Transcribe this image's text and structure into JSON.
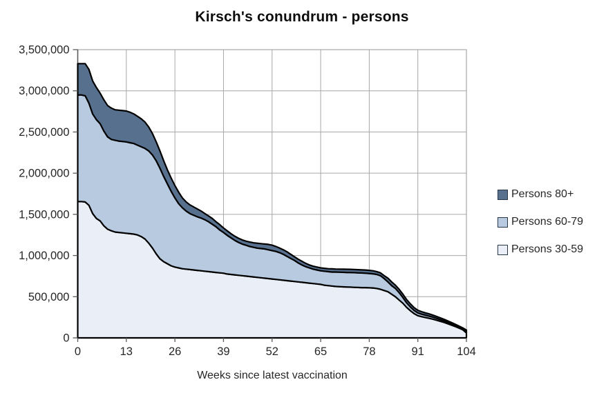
{
  "title": "Kirsch's conundrum - persons",
  "colors": {
    "area_30_59": "#e9eef7",
    "area_60_79": "#b8cadf",
    "area_80_plus": "#57708e",
    "series_outline": "#000000",
    "gridline": "#a6a6a6",
    "plot_border": "#a6a6a6",
    "axis_line": "#595959",
    "text": "#262626"
  },
  "legend": {
    "items": [
      {
        "label": "Persons 80+",
        "color": "#57708e"
      },
      {
        "label": "Persons 60-79",
        "color": "#b8cadf"
      },
      {
        "label": "Persons 30-59",
        "color": "#e9eef7"
      }
    ]
  },
  "chart_data": {
    "type": "area",
    "stacked": true,
    "title": "Kirsch's conundrum - persons",
    "xlabel": "Weeks since latest vaccination",
    "ylabel": "",
    "xlim": [
      0,
      104
    ],
    "ylim": [
      0,
      3500000
    ],
    "grid": true,
    "legend_position": "right",
    "x_ticks": [
      0,
      13,
      26,
      39,
      52,
      65,
      78,
      91,
      104
    ],
    "y_ticks": [
      0,
      500000,
      1000000,
      1500000,
      2000000,
      2500000,
      3000000,
      3500000
    ],
    "y_tick_labels": [
      "0",
      "500,000",
      "1,000,000",
      "1,500,000",
      "2,000,000",
      "2,500,000",
      "3,000,000",
      "3,500,000"
    ],
    "x": [
      0,
      1,
      2,
      3,
      4,
      5,
      6,
      7,
      8,
      9,
      10,
      11,
      12,
      13,
      14,
      15,
      16,
      17,
      18,
      19,
      20,
      21,
      22,
      23,
      24,
      25,
      26,
      27,
      28,
      29,
      30,
      31,
      32,
      33,
      34,
      35,
      36,
      37,
      38,
      39,
      40,
      41,
      42,
      43,
      44,
      45,
      46,
      47,
      48,
      49,
      50,
      51,
      52,
      53,
      54,
      55,
      56,
      57,
      58,
      59,
      60,
      61,
      62,
      63,
      64,
      65,
      66,
      67,
      68,
      69,
      70,
      71,
      72,
      73,
      74,
      75,
      76,
      77,
      78,
      79,
      80,
      81,
      82,
      83,
      84,
      85,
      86,
      87,
      88,
      89,
      90,
      91,
      92,
      93,
      94,
      95,
      96,
      97,
      98,
      99,
      100,
      101,
      102,
      103,
      104
    ],
    "series": [
      {
        "name": "Persons 30-59",
        "color": "#e9eef7",
        "values": [
          1655000,
          1655000,
          1650000,
          1610000,
          1510000,
          1450000,
          1420000,
          1360000,
          1320000,
          1300000,
          1285000,
          1280000,
          1275000,
          1270000,
          1265000,
          1260000,
          1250000,
          1230000,
          1200000,
          1150000,
          1090000,
          1020000,
          960000,
          925000,
          900000,
          875000,
          860000,
          850000,
          840000,
          835000,
          830000,
          825000,
          820000,
          815000,
          810000,
          805000,
          800000,
          795000,
          790000,
          785000,
          775000,
          770000,
          765000,
          760000,
          755000,
          750000,
          745000,
          740000,
          735000,
          730000,
          725000,
          720000,
          715000,
          710000,
          705000,
          700000,
          695000,
          690000,
          685000,
          680000,
          675000,
          670000,
          665000,
          660000,
          655000,
          650000,
          640000,
          635000,
          630000,
          625000,
          622000,
          620000,
          618000,
          616000,
          614000,
          612000,
          610000,
          610000,
          608000,
          606000,
          600000,
          590000,
          575000,
          560000,
          530000,
          500000,
          460000,
          420000,
          370000,
          330000,
          295000,
          270000,
          258000,
          248000,
          238000,
          228000,
          215000,
          202000,
          188000,
          172000,
          155000,
          138000,
          120000,
          100000,
          60000
        ]
      },
      {
        "name": "Persons 60-79",
        "color": "#b8cadf",
        "values": [
          1295000,
          1295000,
          1290000,
          1240000,
          1210000,
          1200000,
          1180000,
          1150000,
          1120000,
          1110000,
          1115000,
          1110000,
          1110000,
          1110000,
          1105000,
          1100000,
          1090000,
          1090000,
          1100000,
          1120000,
          1130000,
          1130000,
          1100000,
          1035000,
          970000,
          905000,
          840000,
          780000,
          740000,
          705000,
          680000,
          665000,
          650000,
          640000,
          625000,
          605000,
          580000,
          555000,
          520000,
          495000,
          470000,
          445000,
          420000,
          400000,
          385000,
          375000,
          365000,
          360000,
          355000,
          355000,
          355000,
          350000,
          345000,
          340000,
          330000,
          315000,
          295000,
          275000,
          255000,
          230000,
          210000,
          195000,
          185000,
          175000,
          170000,
          165000,
          170000,
          170000,
          170000,
          175000,
          176000,
          176000,
          177000,
          178000,
          178000,
          178000,
          178000,
          175000,
          174000,
          172000,
          170000,
          165000,
          145000,
          120000,
          105000,
          100000,
          90000,
          70000,
          55000,
          45000,
          38000,
          33000,
          30000,
          28000,
          27000,
          25000,
          23000,
          21000,
          19000,
          17000,
          15000,
          13000,
          11000,
          10000,
          18000
        ]
      },
      {
        "name": "Persons 80+",
        "color": "#57708e",
        "values": [
          380000,
          380000,
          390000,
          410000,
          400000,
          390000,
          370000,
          380000,
          380000,
          380000,
          370000,
          375000,
          375000,
          375000,
          370000,
          360000,
          350000,
          340000,
          320000,
          290000,
          260000,
          230000,
          210000,
          190000,
          170000,
          160000,
          150000,
          140000,
          120000,
          110000,
          105000,
          100000,
          95000,
          85000,
          75000,
          70000,
          70000,
          60000,
          65000,
          55000,
          55000,
          50000,
          50000,
          50000,
          50000,
          50000,
          55000,
          55000,
          60000,
          60000,
          60000,
          65000,
          65000,
          60000,
          55000,
          55000,
          55000,
          50000,
          45000,
          45000,
          45000,
          40000,
          35000,
          35000,
          35000,
          35000,
          35000,
          35000,
          38000,
          36000,
          37000,
          38000,
          38000,
          38000,
          38000,
          38000,
          38000,
          39000,
          38000,
          37000,
          35000,
          35000,
          35000,
          45000,
          45000,
          40000,
          40000,
          40000,
          40000,
          38000,
          35000,
          32000,
          30000,
          28000,
          26000,
          24000,
          22000,
          21000,
          19000,
          17000,
          16000,
          14000,
          12000,
          11000,
          17000
        ]
      }
    ]
  }
}
